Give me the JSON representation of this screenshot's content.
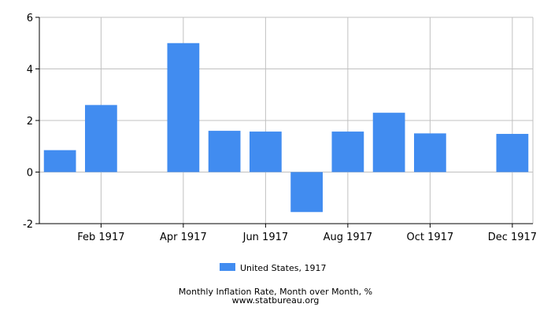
{
  "chart_data": {
    "type": "bar",
    "categories": [
      "Jan 1917",
      "Feb 1917",
      "Mar 1917",
      "Apr 1917",
      "May 1917",
      "Jun 1917",
      "Jul 1917",
      "Aug 1917",
      "Sep 1917",
      "Oct 1917",
      "Nov 1917",
      "Dec 1917"
    ],
    "x_tick_labels": [
      "Feb 1917",
      "Apr 1917",
      "Jun 1917",
      "Aug 1917",
      "Oct 1917",
      "Dec 1917"
    ],
    "series": [
      {
        "name": "United States, 1917",
        "color": "#418cf0",
        "values": [
          0.85,
          2.6,
          0,
          5.0,
          1.6,
          1.57,
          -1.55,
          1.57,
          2.3,
          1.5,
          0,
          1.48
        ]
      }
    ],
    "ylim": [
      -2,
      6
    ],
    "y_ticks": [
      -2,
      0,
      2,
      4,
      6
    ],
    "grid": true,
    "legend_position": "bottom-center",
    "caption": "Monthly Inflation Rate, Month over Month, %",
    "source": "www.statbureau.org"
  }
}
